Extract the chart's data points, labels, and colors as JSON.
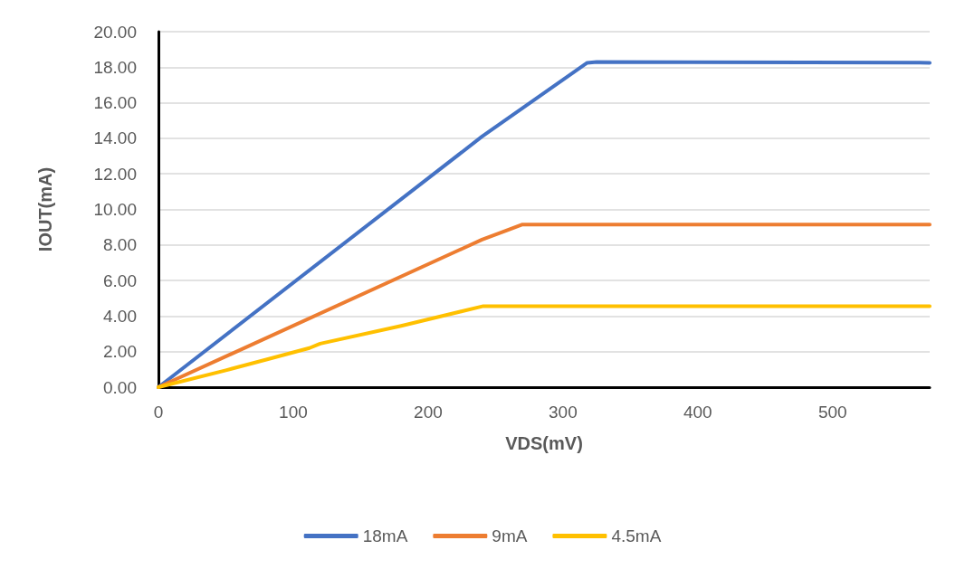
{
  "chart_data": {
    "type": "line",
    "xlabel": "VDS(mV)",
    "ylabel": "IOUT(mA)",
    "xlim": [
      0,
      572
    ],
    "xticks": [
      0,
      100,
      200,
      300,
      400,
      500
    ],
    "ylim": [
      0,
      20
    ],
    "yticks": [
      {
        "value": 0,
        "label": "0.00"
      },
      {
        "value": 2,
        "label": "2.00"
      },
      {
        "value": 4,
        "label": "4.00"
      },
      {
        "value": 6,
        "label": "6.00"
      },
      {
        "value": 8,
        "label": "8.00"
      },
      {
        "value": 10,
        "label": "10.00"
      },
      {
        "value": 12,
        "label": "12.00"
      },
      {
        "value": 14,
        "label": "14.00"
      },
      {
        "value": 16,
        "label": "16.00"
      },
      {
        "value": 18,
        "label": "18.00"
      },
      {
        "value": 20,
        "label": "20.00"
      }
    ],
    "grid": "y",
    "legend": "bottom",
    "marker": "none",
    "line_style": "solid",
    "series": [
      {
        "name": "18mA",
        "color": "#4472c4",
        "x": [
          0,
          240,
          318,
          325,
          572
        ],
        "values": [
          0,
          14.1,
          18.25,
          18.3,
          18.25
        ]
      },
      {
        "name": "9mA",
        "color": "#ed7d31",
        "x": [
          0,
          240,
          270,
          572
        ],
        "values": [
          0,
          8.3,
          9.15,
          9.15
        ]
      },
      {
        "name": "4.5mA",
        "color": "#ffc000",
        "x": [
          0,
          50,
          80,
          112,
          120,
          180,
          241,
          572
        ],
        "values": [
          0,
          0.95,
          1.55,
          2.2,
          2.45,
          3.45,
          4.56,
          4.56
        ]
      }
    ]
  }
}
